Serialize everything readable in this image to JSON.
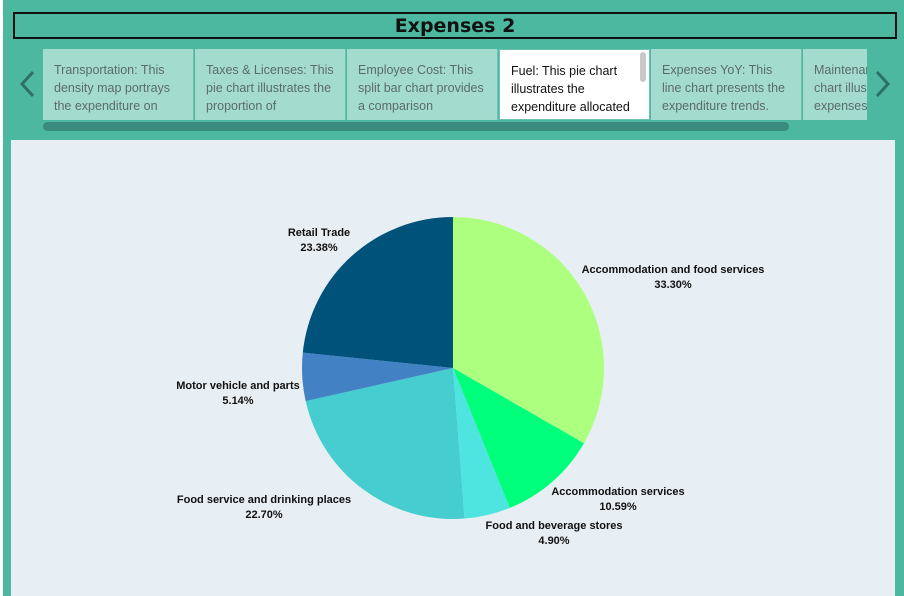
{
  "dashboard": {
    "title": "Expenses 2"
  },
  "navigation": {
    "prev_icon": "chevron-left-icon",
    "next_icon": "chevron-right-icon"
  },
  "cards": [
    {
      "text": "Transportation: This density map portrays the expenditure on",
      "active": false
    },
    {
      "text": "Taxes & Licenses: This pie chart illustrates the proportion of",
      "active": false
    },
    {
      "text": "Employee Cost: This split bar chart provides a comparison",
      "active": false
    },
    {
      "text": "Fuel: This pie chart illustrates the expenditure allocated",
      "active": true
    },
    {
      "text": "Expenses YoY: This line chart presents the expenditure trends.",
      "active": false
    },
    {
      "text": "Maintenance: This pie chart illustrates expenses",
      "active": false
    }
  ],
  "chart_data": {
    "type": "pie",
    "title": "",
    "slices": [
      {
        "name": "Accommodation and food services",
        "value": 33.3,
        "label": "33.30%",
        "color": "#acff7f"
      },
      {
        "name": "Accommodation services",
        "value": 10.59,
        "label": "10.59%",
        "color": "#00ff7a"
      },
      {
        "name": "Food and beverage stores",
        "value": 4.9,
        "label": "4.90%",
        "color": "#4ee5e0"
      },
      {
        "name": "Food service and drinking places",
        "value": 22.7,
        "label": "22.70%",
        "color": "#46cdd0"
      },
      {
        "name": "Motor vehicle and parts",
        "value": 5.14,
        "label": "5.14%",
        "color": "#4282c4"
      },
      {
        "name": "Retail Trade",
        "value": 23.38,
        "label": "23.38%",
        "color": "#00527a"
      }
    ]
  },
  "colors": {
    "frame": "#4db8a0",
    "card": "#a3dccf",
    "panel": "#e8eff4"
  }
}
